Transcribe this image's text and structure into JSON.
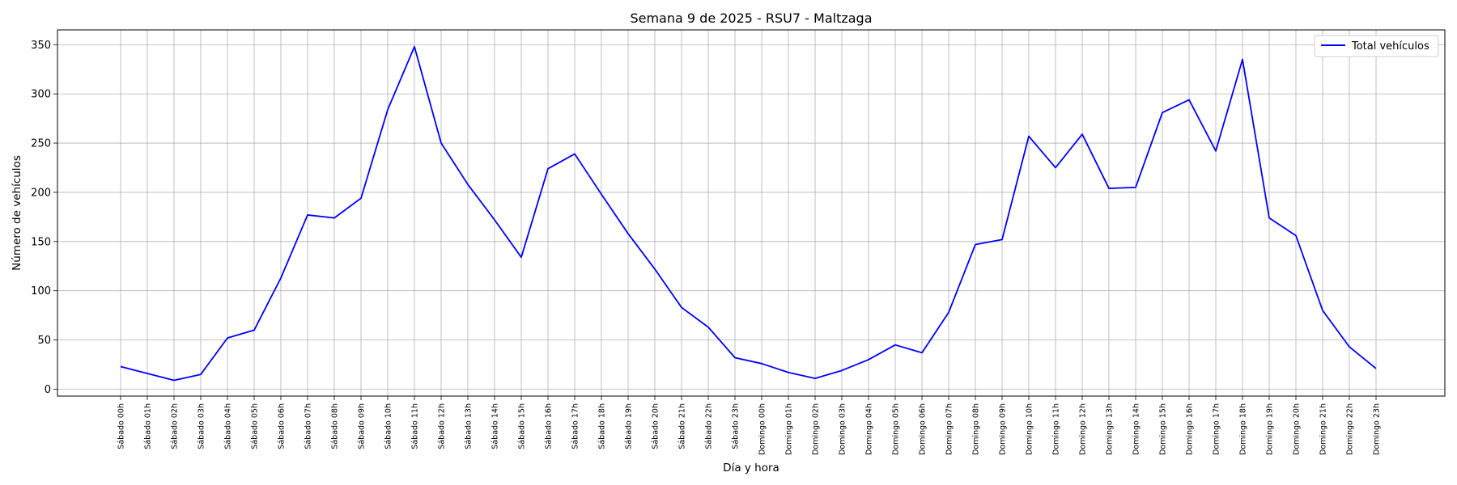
{
  "chart_data": {
    "type": "line",
    "title": "Semana 9 de 2025 - RSU7 - Maltzaga",
    "xlabel": "Día y hora",
    "ylabel": "Número de vehículos",
    "ylim": [
      -7,
      365
    ],
    "yticks": [
      0,
      50,
      100,
      150,
      200,
      250,
      300,
      350
    ],
    "grid": true,
    "legend_position": "top-right",
    "categories": [
      "Sábado 00h",
      "Sábado 01h",
      "Sábado 02h",
      "Sábado 03h",
      "Sábado 04h",
      "Sábado 05h",
      "Sábado 06h",
      "Sábado 07h",
      "Sábado 08h",
      "Sábado 09h",
      "Sábado 10h",
      "Sábado 11h",
      "Sábado 12h",
      "Sábado 13h",
      "Sábado 14h",
      "Sábado 15h",
      "Sábado 16h",
      "Sábado 17h",
      "Sábado 18h",
      "Sábado 19h",
      "Sábado 20h",
      "Sábado 21h",
      "Sábado 22h",
      "Sábado 23h",
      "Domingo 00h",
      "Domingo 01h",
      "Domingo 02h",
      "Domingo 03h",
      "Domingo 04h",
      "Domingo 05h",
      "Domingo 06h",
      "Domingo 07h",
      "Domingo 08h",
      "Domingo 09h",
      "Domingo 10h",
      "Domingo 11h",
      "Domingo 12h",
      "Domingo 13h",
      "Domingo 14h",
      "Domingo 15h",
      "Domingo 16h",
      "Domingo 17h",
      "Domingo 18h",
      "Domingo 19h",
      "Domingo 20h",
      "Domingo 21h",
      "Domingo 22h",
      "Domingo 23h"
    ],
    "series": [
      {
        "name": "Total vehículos",
        "color": "#0000ff",
        "values": [
          23,
          16,
          9,
          15,
          52,
          60,
          113,
          177,
          174,
          194,
          284,
          348,
          250,
          208,
          172,
          134,
          224,
          239,
          198,
          158,
          122,
          83,
          63,
          32,
          26,
          17,
          11,
          19,
          30,
          45,
          37,
          78,
          147,
          152,
          257,
          225,
          259,
          204,
          205,
          281,
          294,
          242,
          335,
          174,
          156,
          80,
          43,
          21
        ]
      }
    ]
  }
}
